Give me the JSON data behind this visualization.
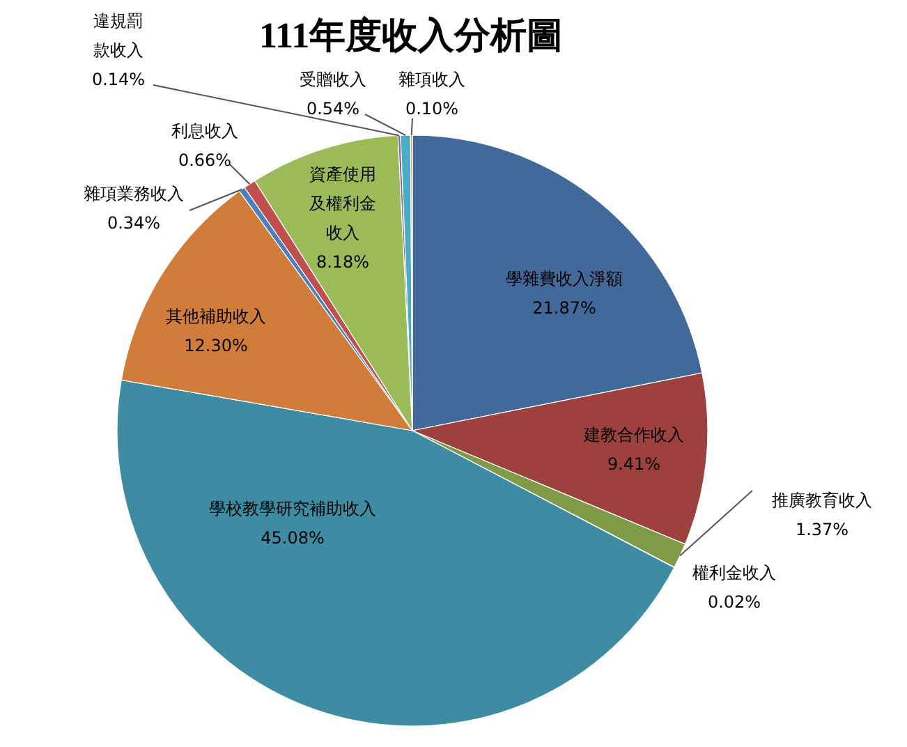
{
  "chart_data": {
    "type": "pie",
    "title": "111年度收入分析圖",
    "categories": [
      "學雜費收入淨額",
      "建教合作收入",
      "推廣教育收入",
      "權利金收入",
      "學校教學研究補助收入",
      "其他補助收入",
      "雜項業務收入",
      "利息收入",
      "資產使用及權利金收入",
      "違規罰款收入",
      "受贈收入",
      "雜項收入"
    ],
    "values": [
      21.87,
      9.41,
      1.37,
      0.02,
      45.08,
      12.3,
      0.34,
      0.66,
      8.18,
      0.14,
      0.54,
      0.1
    ],
    "value_labels": [
      "21.87%",
      "9.41%",
      "1.37%",
      "0.02%",
      "45.08%",
      "12.30%",
      "0.34%",
      "0.66%",
      "8.18%",
      "0.14%",
      "0.54%",
      "0.10%"
    ],
    "colors": [
      "#41699a",
      "#9e413e",
      "#7f9b48",
      "#7d5f9f",
      "#3e8ca4",
      "#d07c3a",
      "#4a7fc0",
      "#c0504d",
      "#9bbb59",
      "#8064a2",
      "#4bacc6",
      "#f79646"
    ]
  }
}
